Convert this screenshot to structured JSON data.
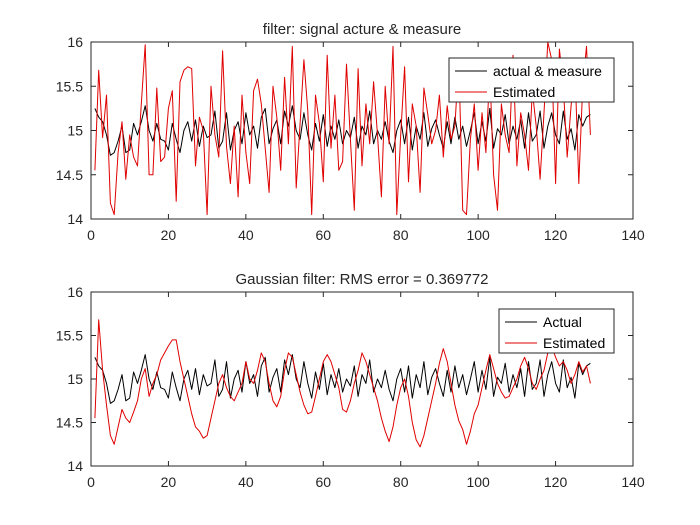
{
  "chart_data": [
    {
      "type": "line",
      "title": "filter: signal acture & measure",
      "xlabel": "",
      "ylabel": "",
      "xlim": [
        0,
        140
      ],
      "ylim": [
        14,
        16
      ],
      "xticks": [
        0,
        20,
        40,
        60,
        80,
        100,
        120,
        140
      ],
      "yticks": [
        14,
        14.5,
        15,
        15.5,
        16
      ],
      "legend_position": "top-right",
      "series": [
        {
          "name": "actual & measure",
          "color": "#000000",
          "x": [
            1,
            2,
            3,
            4,
            5,
            6,
            7,
            8,
            9,
            10,
            11,
            12,
            13,
            14,
            15,
            16,
            17,
            18,
            19,
            20,
            21,
            22,
            23,
            24,
            25,
            26,
            27,
            28,
            29,
            30,
            31,
            32,
            33,
            34,
            35,
            36,
            37,
            38,
            39,
            40,
            41,
            42,
            43,
            44,
            45,
            46,
            47,
            48,
            49,
            50,
            51,
            52,
            53,
            54,
            55,
            56,
            57,
            58,
            59,
            60,
            61,
            62,
            63,
            64,
            65,
            66,
            67,
            68,
            69,
            70,
            71,
            72,
            73,
            74,
            75,
            76,
            77,
            78,
            79,
            80,
            81,
            82,
            83,
            84,
            85,
            86,
            87,
            88,
            89,
            90,
            91,
            92,
            93,
            94,
            95,
            96,
            97,
            98,
            99,
            100,
            101,
            102,
            103,
            104,
            105,
            106,
            107,
            108,
            109,
            110,
            111,
            112,
            113,
            114,
            115,
            116,
            117,
            118,
            119,
            120,
            121,
            122,
            123,
            124,
            125,
            126,
            127,
            128,
            129
          ],
          "values": [
            15.25,
            15.15,
            15.1,
            14.95,
            14.72,
            14.75,
            14.88,
            15.05,
            14.75,
            14.78,
            15.08,
            14.95,
            15.1,
            15.28,
            15.0,
            14.88,
            15.08,
            14.9,
            14.88,
            14.78,
            15.08,
            14.9,
            14.75,
            15.0,
            15.1,
            14.88,
            15.12,
            14.82,
            15.05,
            14.92,
            14.95,
            15.22,
            14.8,
            14.88,
            15.2,
            14.78,
            15.0,
            15.1,
            14.85,
            15.2,
            14.95,
            15.05,
            14.8,
            15.15,
            15.25,
            14.85,
            15.02,
            15.12,
            14.85,
            15.22,
            15.05,
            15.28,
            15.0,
            14.9,
            15.2,
            14.95,
            14.78,
            15.08,
            14.88,
            15.18,
            14.82,
            15.05,
            14.9,
            15.12,
            14.85,
            15.0,
            14.92,
            15.15,
            14.8,
            15.05,
            14.95,
            15.22,
            14.85,
            15.0,
            14.9,
            15.1,
            14.88,
            14.75,
            15.0,
            15.12,
            14.85,
            15.15,
            14.78,
            15.05,
            14.9,
            15.2,
            14.82,
            15.02,
            15.12,
            14.95,
            14.8,
            15.1,
            14.85,
            15.15,
            14.9,
            15.05,
            14.82,
            15.0,
            15.2,
            14.85,
            15.1,
            14.88,
            15.25,
            14.8,
            15.02,
            14.95,
            15.18,
            14.85,
            15.05,
            14.9,
            15.12,
            14.8,
            15.2,
            14.88,
            14.95,
            15.22,
            14.8,
            15.05,
            15.2,
            14.95,
            14.85,
            15.22,
            14.9,
            15.02,
            14.78,
            15.18,
            15.05,
            15.15,
            15.18
          ]
        },
        {
          "name": "Estimated",
          "color": "#e00000",
          "x": [
            1,
            2,
            3,
            4,
            5,
            6,
            7,
            8,
            9,
            10,
            11,
            12,
            13,
            14,
            15,
            16,
            17,
            18,
            19,
            20,
            21,
            22,
            23,
            24,
            25,
            26,
            27,
            28,
            29,
            30,
            31,
            32,
            33,
            34,
            35,
            36,
            37,
            38,
            39,
            40,
            41,
            42,
            43,
            44,
            45,
            46,
            47,
            48,
            49,
            50,
            51,
            52,
            53,
            54,
            55,
            56,
            57,
            58,
            59,
            60,
            61,
            62,
            63,
            64,
            65,
            66,
            67,
            68,
            69,
            70,
            71,
            72,
            73,
            74,
            75,
            76,
            77,
            78,
            79,
            80,
            81,
            82,
            83,
            84,
            85,
            86,
            87,
            88,
            89,
            90,
            91,
            92,
            93,
            94,
            95,
            96,
            97,
            98,
            99,
            100,
            101,
            102,
            103,
            104,
            105,
            106,
            107,
            108,
            109,
            110,
            111,
            112,
            113,
            114,
            115,
            116,
            117,
            118,
            119,
            120,
            121,
            122,
            123,
            124,
            125,
            126,
            127,
            128,
            129
          ],
          "values": [
            14.55,
            15.68,
            14.92,
            15.4,
            14.18,
            14.05,
            14.75,
            15.1,
            14.45,
            14.95,
            14.7,
            14.6,
            15.3,
            15.97,
            14.5,
            14.5,
            15.48,
            14.65,
            14.7,
            15.25,
            15.45,
            14.2,
            15.55,
            15.68,
            15.72,
            15.7,
            14.6,
            15.15,
            15.0,
            14.05,
            15.5,
            14.95,
            14.7,
            15.9,
            14.82,
            14.4,
            15.05,
            14.25,
            15.4,
            14.75,
            14.4,
            15.45,
            15.58,
            15.3,
            14.8,
            14.3,
            15.5,
            15.15,
            14.55,
            15.6,
            14.85,
            15.95,
            14.35,
            15.08,
            15.8,
            15.22,
            14.05,
            15.4,
            15.08,
            14.42,
            15.85,
            14.8,
            15.4,
            14.55,
            14.65,
            15.75,
            14.9,
            14.1,
            15.7,
            14.6,
            15.3,
            14.85,
            15.55,
            14.95,
            14.25,
            15.5,
            14.85,
            15.95,
            14.05,
            14.95,
            15.72,
            14.42,
            15.3,
            15.05,
            14.3,
            15.48,
            15.18,
            14.85,
            15.0,
            15.4,
            14.7,
            15.28,
            14.9,
            15.05,
            15.8,
            14.1,
            14.05,
            14.9,
            15.3,
            14.55,
            15.2,
            14.75,
            15.68,
            14.5,
            14.1,
            15.3,
            14.95,
            14.75,
            15.85,
            14.6,
            15.2,
            14.95,
            14.55,
            15.45,
            15.05,
            14.45,
            15.2,
            16.0,
            15.8,
            14.4,
            15.92,
            15.5,
            14.7,
            15.28,
            15.72,
            14.4,
            15.5,
            15.95,
            14.95
          ]
        }
      ]
    },
    {
      "type": "line",
      "title": "Gaussian filter: RMS error = 0.369772",
      "xlabel": "",
      "ylabel": "",
      "xlim": [
        0,
        140
      ],
      "ylim": [
        14,
        16
      ],
      "xticks": [
        0,
        20,
        40,
        60,
        80,
        100,
        120,
        140
      ],
      "yticks": [
        14,
        14.5,
        15,
        15.5,
        16
      ],
      "legend_position": "top-right",
      "series": [
        {
          "name": "Actual",
          "color": "#000000",
          "x": [
            1,
            2,
            3,
            4,
            5,
            6,
            7,
            8,
            9,
            10,
            11,
            12,
            13,
            14,
            15,
            16,
            17,
            18,
            19,
            20,
            21,
            22,
            23,
            24,
            25,
            26,
            27,
            28,
            29,
            30,
            31,
            32,
            33,
            34,
            35,
            36,
            37,
            38,
            39,
            40,
            41,
            42,
            43,
            44,
            45,
            46,
            47,
            48,
            49,
            50,
            51,
            52,
            53,
            54,
            55,
            56,
            57,
            58,
            59,
            60,
            61,
            62,
            63,
            64,
            65,
            66,
            67,
            68,
            69,
            70,
            71,
            72,
            73,
            74,
            75,
            76,
            77,
            78,
            79,
            80,
            81,
            82,
            83,
            84,
            85,
            86,
            87,
            88,
            89,
            90,
            91,
            92,
            93,
            94,
            95,
            96,
            97,
            98,
            99,
            100,
            101,
            102,
            103,
            104,
            105,
            106,
            107,
            108,
            109,
            110,
            111,
            112,
            113,
            114,
            115,
            116,
            117,
            118,
            119,
            120,
            121,
            122,
            123,
            124,
            125,
            126,
            127,
            128,
            129
          ],
          "values": [
            15.25,
            15.15,
            15.1,
            14.95,
            14.72,
            14.75,
            14.88,
            15.05,
            14.75,
            14.78,
            15.08,
            14.95,
            15.1,
            15.28,
            15.0,
            14.88,
            15.08,
            14.9,
            14.88,
            14.78,
            15.08,
            14.9,
            14.75,
            15.0,
            15.1,
            14.88,
            15.12,
            14.82,
            15.05,
            14.92,
            14.95,
            15.22,
            14.8,
            14.88,
            15.2,
            14.78,
            15.0,
            15.1,
            14.85,
            15.2,
            14.95,
            15.05,
            14.8,
            15.15,
            15.25,
            14.85,
            15.02,
            15.12,
            14.85,
            15.22,
            15.05,
            15.28,
            15.0,
            14.9,
            15.2,
            14.95,
            14.78,
            15.08,
            14.88,
            15.18,
            14.82,
            15.05,
            14.9,
            15.12,
            14.85,
            15.0,
            14.92,
            15.15,
            14.8,
            15.05,
            14.95,
            15.22,
            14.85,
            15.0,
            14.9,
            15.1,
            14.88,
            14.75,
            15.0,
            15.12,
            14.85,
            15.15,
            14.78,
            15.05,
            14.9,
            15.2,
            14.82,
            15.02,
            15.12,
            14.95,
            14.8,
            15.1,
            14.85,
            15.15,
            14.9,
            15.05,
            14.82,
            15.0,
            15.2,
            14.85,
            15.1,
            14.88,
            15.25,
            14.8,
            15.02,
            14.95,
            15.18,
            14.85,
            15.05,
            14.9,
            15.12,
            14.8,
            15.2,
            14.88,
            14.95,
            15.22,
            14.8,
            15.05,
            15.2,
            14.95,
            14.85,
            15.22,
            14.9,
            15.02,
            14.78,
            15.18,
            15.05,
            15.15,
            15.18
          ]
        },
        {
          "name": "Estimated",
          "color": "#e00000",
          "x": [
            1,
            2,
            3,
            4,
            5,
            6,
            7,
            8,
            9,
            10,
            11,
            12,
            13,
            14,
            15,
            16,
            17,
            18,
            19,
            20,
            21,
            22,
            23,
            24,
            25,
            26,
            27,
            28,
            29,
            30,
            31,
            32,
            33,
            34,
            35,
            36,
            37,
            38,
            39,
            40,
            41,
            42,
            43,
            44,
            45,
            46,
            47,
            48,
            49,
            50,
            51,
            52,
            53,
            54,
            55,
            56,
            57,
            58,
            59,
            60,
            61,
            62,
            63,
            64,
            65,
            66,
            67,
            68,
            69,
            70,
            71,
            72,
            73,
            74,
            75,
            76,
            77,
            78,
            79,
            80,
            81,
            82,
            83,
            84,
            85,
            86,
            87,
            88,
            89,
            90,
            91,
            92,
            93,
            94,
            95,
            96,
            97,
            98,
            99,
            100,
            101,
            102,
            103,
            104,
            105,
            106,
            107,
            108,
            109,
            110,
            111,
            112,
            113,
            114,
            115,
            116,
            117,
            118,
            119,
            120,
            121,
            122,
            123,
            124,
            125,
            126,
            127,
            128,
            129
          ],
          "values": [
            14.55,
            15.68,
            15.1,
            14.7,
            14.35,
            14.25,
            14.45,
            14.65,
            14.55,
            14.5,
            14.62,
            14.75,
            15.0,
            15.12,
            14.8,
            14.95,
            15.05,
            15.22,
            15.3,
            15.38,
            15.45,
            15.45,
            15.2,
            15.0,
            14.8,
            14.6,
            14.45,
            14.4,
            14.32,
            14.35,
            14.55,
            14.75,
            14.95,
            15.05,
            14.9,
            14.8,
            14.75,
            14.85,
            14.95,
            15.2,
            15.0,
            14.95,
            15.1,
            15.3,
            15.2,
            14.95,
            14.75,
            14.68,
            14.8,
            15.1,
            15.3,
            15.25,
            15.05,
            14.85,
            14.7,
            14.6,
            14.62,
            14.8,
            15.0,
            15.2,
            15.28,
            15.2,
            15.05,
            14.9,
            14.65,
            14.62,
            14.75,
            14.95,
            15.1,
            15.3,
            15.2,
            15.05,
            14.9,
            14.75,
            14.55,
            14.4,
            14.28,
            14.45,
            14.7,
            14.9,
            15.0,
            14.8,
            14.5,
            14.3,
            14.22,
            14.35,
            14.55,
            14.75,
            14.95,
            15.18,
            15.35,
            15.2,
            14.95,
            14.7,
            14.52,
            14.42,
            14.25,
            14.4,
            14.6,
            14.7,
            14.9,
            15.1,
            15.28,
            15.12,
            14.95,
            14.85,
            14.78,
            14.8,
            14.9,
            15.0,
            15.15,
            15.25,
            15.12,
            14.95,
            14.88,
            15.0,
            15.1,
            15.3,
            15.38,
            15.25,
            15.15,
            15.2,
            15.1,
            14.95,
            15.05,
            15.2,
            15.08,
            15.15,
            14.95
          ]
        }
      ]
    }
  ]
}
